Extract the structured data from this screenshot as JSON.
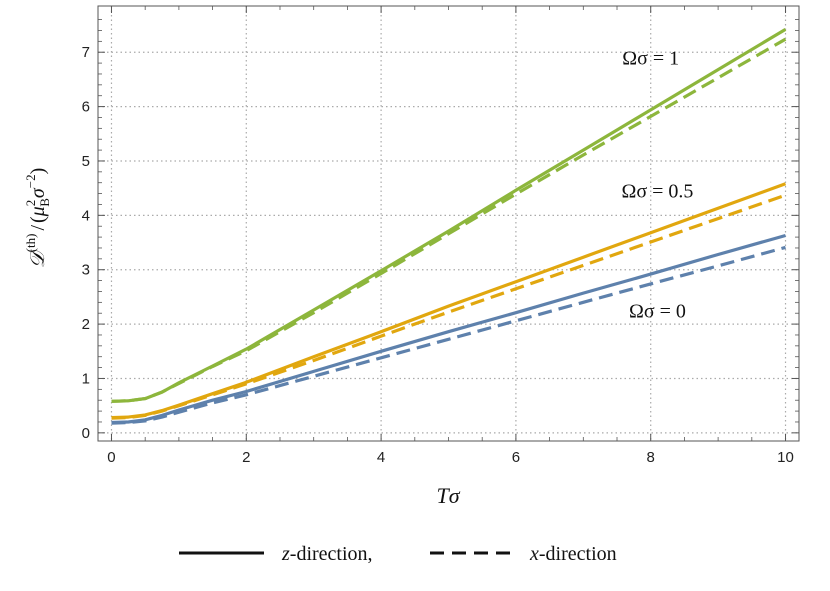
{
  "chart_data": {
    "type": "line",
    "xlabel": "Tσ",
    "ylabel": "𝒟^(th) / (μ_B^2 σ^-2)",
    "ylabel_parts": {
      "main": "𝒟",
      "sup1": "(th)",
      "slash": "/",
      "open": "(",
      "mu": "μ",
      "mu_sup": "2",
      "mu_sub": "B",
      "sigma": "σ",
      "sigma_sup": "−2",
      "close": ")"
    },
    "xlim": [
      -0.2,
      10.2
    ],
    "ylim": [
      -0.15,
      7.85
    ],
    "xticks": [
      0,
      2,
      4,
      6,
      8,
      10
    ],
    "yticks": [
      0,
      1,
      2,
      3,
      4,
      5,
      6,
      7
    ],
    "grid": true,
    "x": [
      0,
      0.25,
      0.5,
      0.75,
      1,
      1.5,
      2,
      3,
      4,
      5,
      6,
      7,
      8,
      9,
      10
    ],
    "series": [
      {
        "name": "Ωσ = 0, z-direction",
        "group": "Ωσ = 0",
        "style": "solid",
        "color": "#5e81ac",
        "values": [
          0.19,
          0.2,
          0.24,
          0.32,
          0.42,
          0.6,
          0.76,
          1.13,
          1.5,
          1.86,
          2.21,
          2.57,
          2.92,
          3.28,
          3.63
        ]
      },
      {
        "name": "Ωσ = 0, x-direction",
        "group": "Ωσ = 0",
        "style": "dashed",
        "color": "#5e81ac",
        "values": [
          0.18,
          0.19,
          0.22,
          0.29,
          0.38,
          0.55,
          0.7,
          1.04,
          1.38,
          1.72,
          2.06,
          2.4,
          2.74,
          3.07,
          3.41
        ]
      },
      {
        "name": "Ωσ = 0.5, z-direction",
        "group": "Ωσ = 0.5",
        "style": "solid",
        "color": "#e1a70f",
        "values": [
          0.28,
          0.29,
          0.33,
          0.41,
          0.51,
          0.72,
          0.93,
          1.4,
          1.86,
          2.33,
          2.78,
          3.23,
          3.68,
          4.13,
          4.58
        ]
      },
      {
        "name": "Ωσ = 0.5, x-direction",
        "group": "Ωsigma = 0.5",
        "style": "dashed",
        "color": "#e1a70f",
        "values": [
          0.27,
          0.28,
          0.32,
          0.4,
          0.5,
          0.7,
          0.9,
          1.33,
          1.78,
          2.22,
          2.65,
          3.08,
          3.51,
          3.94,
          4.37
        ]
      },
      {
        "name": "Ωσ = 1, z-direction",
        "group": "Ωσ = 1",
        "style": "solid",
        "color": "#8db63c",
        "values": [
          0.58,
          0.59,
          0.63,
          0.75,
          0.92,
          1.23,
          1.54,
          2.26,
          2.98,
          3.71,
          4.46,
          5.2,
          5.94,
          6.68,
          7.42
        ]
      },
      {
        "name": "Ωσ = 1, x-direction",
        "group": "Ωσ = 1",
        "style": "dashed",
        "color": "#8db63c",
        "values": [
          0.58,
          0.59,
          0.63,
          0.75,
          0.91,
          1.22,
          1.51,
          2.21,
          2.93,
          3.66,
          4.39,
          5.11,
          5.82,
          6.53,
          7.24
        ]
      }
    ],
    "annotations": [
      {
        "text": "Ωσ = 1",
        "x": 8.0,
        "y": 6.77
      },
      {
        "text": "Ωσ = 0.5",
        "x": 8.1,
        "y": 4.33
      },
      {
        "text": "Ωσ = 0",
        "x": 8.1,
        "y": 2.12
      }
    ],
    "legend": {
      "placement": "bottom-center",
      "items": [
        {
          "style": "solid",
          "z": "z",
          "label": "-direction,"
        },
        {
          "style": "dashed",
          "z": "x",
          "label": "-direction"
        }
      ]
    }
  }
}
